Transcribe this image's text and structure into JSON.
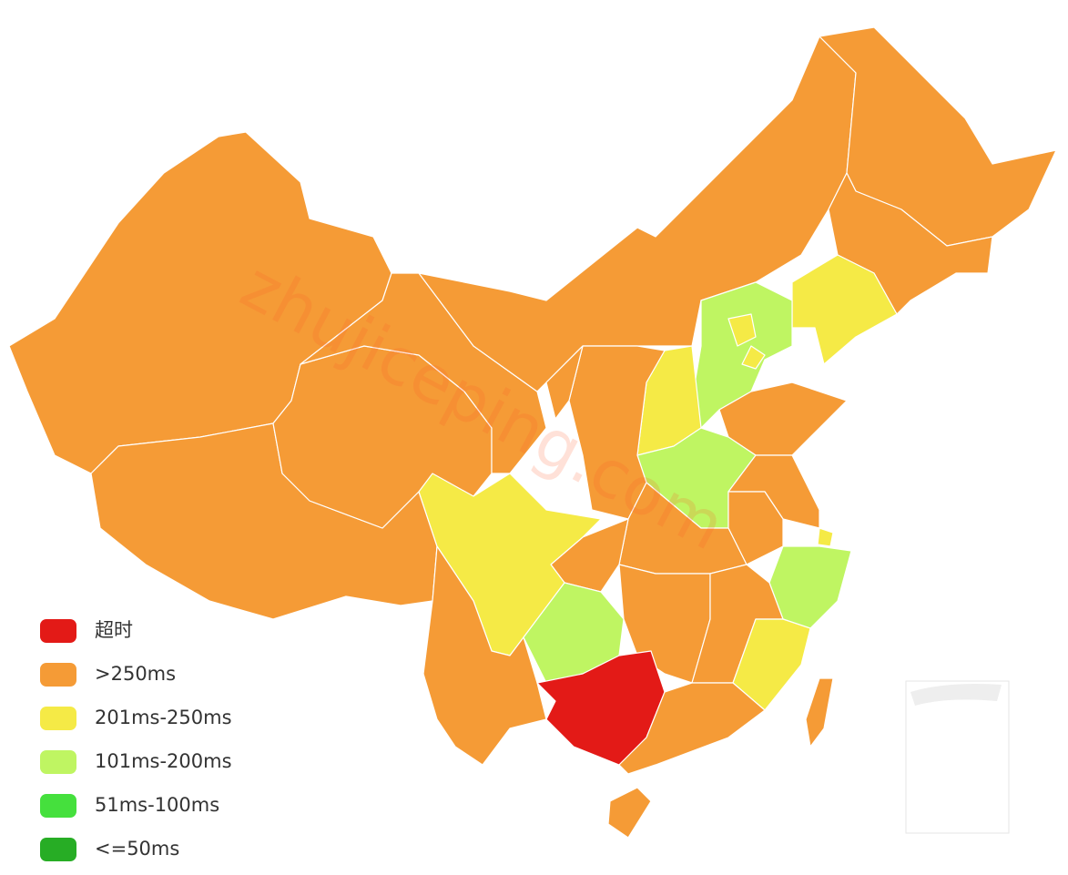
{
  "watermark": "zhujiceping.com",
  "legend": [
    {
      "label": "超时",
      "color": "#e31a17"
    },
    {
      "label": ">250ms",
      "color": "#f59b36"
    },
    {
      "label": "201ms-250ms",
      "color": "#f5ea46"
    },
    {
      "label": "101ms-200ms",
      "color": "#bff562"
    },
    {
      "label": "51ms-100ms",
      "color": "#45e03d"
    },
    {
      "label": "<=50ms",
      "color": "#27ad25"
    }
  ]
}
